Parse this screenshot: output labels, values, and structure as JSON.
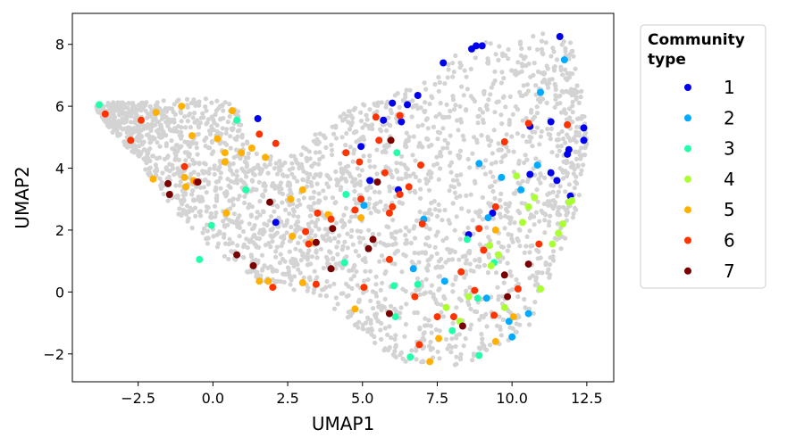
{
  "chart_data": {
    "type": "scatter",
    "xlabel": "UMAP1",
    "ylabel": "UMAP2",
    "xlim": [
      -4.7,
      13.4
    ],
    "ylim": [
      -2.9,
      9.0
    ],
    "xticks": [
      -2.5,
      0.0,
      2.5,
      5.0,
      7.5,
      10.0,
      12.5
    ],
    "xtick_labels": [
      "−2.5",
      "0.0",
      "2.5",
      "5.0",
      "7.5",
      "10.0",
      "12.5"
    ],
    "yticks": [
      -2,
      0,
      2,
      4,
      6,
      8
    ],
    "ytick_labels": [
      "−2",
      "0",
      "2",
      "4",
      "6",
      "8"
    ],
    "grid": false,
    "legend": {
      "title_lines": [
        "Community",
        "type"
      ],
      "placement": "outside-top-right"
    },
    "background_points_color": "#d3d3d3",
    "series": [
      {
        "name": "1",
        "color": "#0000ee",
        "points": [
          [
            8.8,
            7.95
          ],
          [
            9.0,
            7.95
          ],
          [
            8.65,
            7.85
          ],
          [
            7.7,
            7.4
          ],
          [
            11.6,
            8.25
          ],
          [
            6.0,
            6.1
          ],
          [
            6.5,
            6.05
          ],
          [
            6.85,
            6.35
          ],
          [
            5.7,
            5.55
          ],
          [
            6.3,
            5.5
          ],
          [
            10.6,
            5.35
          ],
          [
            11.3,
            5.5
          ],
          [
            12.4,
            5.3
          ],
          [
            12.4,
            4.9
          ],
          [
            11.9,
            4.6
          ],
          [
            11.85,
            4.45
          ],
          [
            1.5,
            5.6
          ],
          [
            4.95,
            4.7
          ],
          [
            10.6,
            3.8
          ],
          [
            11.3,
            3.85
          ],
          [
            11.5,
            3.6
          ],
          [
            11.95,
            3.1
          ],
          [
            5.25,
            3.6
          ],
          [
            6.2,
            3.3
          ],
          [
            2.1,
            2.25
          ],
          [
            9.35,
            2.55
          ],
          [
            8.55,
            1.85
          ]
        ]
      },
      {
        "name": "2",
        "color": "#00aaff",
        "points": [
          [
            11.75,
            7.5
          ],
          [
            10.95,
            6.45
          ],
          [
            10.85,
            4.1
          ],
          [
            8.9,
            4.15
          ],
          [
            9.65,
            3.7
          ],
          [
            10.3,
            3.3
          ],
          [
            9.2,
            2.4
          ],
          [
            5.05,
            2.8
          ],
          [
            7.05,
            2.35
          ],
          [
            6.7,
            0.75
          ],
          [
            7.75,
            0.35
          ],
          [
            9.15,
            -0.2
          ],
          [
            10.55,
            -0.7
          ],
          [
            9.9,
            -0.95
          ],
          [
            10.0,
            -1.45
          ]
        ]
      },
      {
        "name": "3",
        "color": "#22ffaa",
        "points": [
          [
            -3.8,
            6.05
          ],
          [
            0.8,
            5.55
          ],
          [
            1.1,
            3.3
          ],
          [
            6.15,
            4.5
          ],
          [
            4.45,
            3.15
          ],
          [
            -0.05,
            2.15
          ],
          [
            -0.45,
            1.05
          ],
          [
            4.4,
            0.95
          ],
          [
            8.5,
            1.7
          ],
          [
            9.4,
            0.95
          ],
          [
            6.05,
            0.2
          ],
          [
            6.85,
            0.25
          ],
          [
            8.85,
            -0.2
          ],
          [
            6.1,
            -0.8
          ],
          [
            8.0,
            -1.25
          ],
          [
            6.6,
            -2.1
          ],
          [
            8.9,
            -2.05
          ]
        ]
      },
      {
        "name": "4",
        "color": "#aaff33",
        "points": [
          [
            10.15,
            3.75
          ],
          [
            10.75,
            3.05
          ],
          [
            10.55,
            2.75
          ],
          [
            10.35,
            2.25
          ],
          [
            11.9,
            2.9
          ],
          [
            12.0,
            2.95
          ],
          [
            11.55,
            1.9
          ],
          [
            11.7,
            2.2
          ],
          [
            9.25,
            1.5
          ],
          [
            9.55,
            1.2
          ],
          [
            9.3,
            0.85
          ],
          [
            11.35,
            1.55
          ],
          [
            10.95,
            0.1
          ],
          [
            8.55,
            -0.15
          ],
          [
            7.8,
            -0.5
          ],
          [
            9.75,
            -0.5
          ],
          [
            8.25,
            -0.95
          ]
        ]
      },
      {
        "name": "5",
        "color": "#ffb000",
        "points": [
          [
            -1.9,
            5.8
          ],
          [
            -1.05,
            6.0
          ],
          [
            0.65,
            5.85
          ],
          [
            -0.7,
            5.05
          ],
          [
            0.15,
            4.95
          ],
          [
            1.3,
            4.65
          ],
          [
            0.95,
            4.5
          ],
          [
            1.75,
            4.35
          ],
          [
            0.4,
            4.5
          ],
          [
            0.4,
            4.2
          ],
          [
            -2.0,
            3.65
          ],
          [
            -0.95,
            3.7
          ],
          [
            -0.9,
            3.4
          ],
          [
            -0.65,
            3.6
          ],
          [
            3.0,
            3.3
          ],
          [
            2.6,
            3.0
          ],
          [
            3.85,
            2.5
          ],
          [
            4.95,
            2.4
          ],
          [
            0.45,
            2.55
          ],
          [
            2.65,
            1.8
          ],
          [
            3.3,
            1.6
          ],
          [
            1.55,
            0.35
          ],
          [
            1.85,
            0.35
          ],
          [
            3.0,
            0.3
          ],
          [
            4.75,
            -0.55
          ],
          [
            9.45,
            2.0
          ],
          [
            10.05,
            -0.8
          ],
          [
            7.55,
            -1.5
          ],
          [
            9.45,
            -1.6
          ],
          [
            7.25,
            -2.25
          ]
        ]
      },
      {
        "name": "6",
        "color": "#ff3300",
        "points": [
          [
            -3.6,
            5.75
          ],
          [
            -2.4,
            5.55
          ],
          [
            -2.75,
            4.9
          ],
          [
            1.55,
            5.1
          ],
          [
            2.1,
            4.8
          ],
          [
            -0.95,
            4.05
          ],
          [
            -0.55,
            3.55
          ],
          [
            5.45,
            5.65
          ],
          [
            6.25,
            5.7
          ],
          [
            4.45,
            4.5
          ],
          [
            4.9,
            4.2
          ],
          [
            5.55,
            4.9
          ],
          [
            6.95,
            4.1
          ],
          [
            5.75,
            3.85
          ],
          [
            6.55,
            3.4
          ],
          [
            6.25,
            3.15
          ],
          [
            4.95,
            3.0
          ],
          [
            4.75,
            2.65
          ],
          [
            6.0,
            2.75
          ],
          [
            5.9,
            2.55
          ],
          [
            3.5,
            2.55
          ],
          [
            3.95,
            2.35
          ],
          [
            7.0,
            2.2
          ],
          [
            3.1,
            1.95
          ],
          [
            3.2,
            1.55
          ],
          [
            9.45,
            2.75
          ],
          [
            8.9,
            2.05
          ],
          [
            10.55,
            5.45
          ],
          [
            11.85,
            5.4
          ],
          [
            9.75,
            4.85
          ],
          [
            10.9,
            1.55
          ],
          [
            9.05,
            1.35
          ],
          [
            5.9,
            1.05
          ],
          [
            8.3,
            0.65
          ],
          [
            10.2,
            0.1
          ],
          [
            2.0,
            0.15
          ],
          [
            3.45,
            0.25
          ],
          [
            5.05,
            0.15
          ],
          [
            6.75,
            -0.15
          ],
          [
            8.75,
            0.05
          ],
          [
            7.5,
            -0.8
          ],
          [
            8.05,
            -0.8
          ],
          [
            9.4,
            -0.75
          ],
          [
            6.9,
            -1.7
          ]
        ]
      },
      {
        "name": "7",
        "color": "#7a0000",
        "points": [
          [
            -1.5,
            3.5
          ],
          [
            -1.45,
            3.15
          ],
          [
            -0.5,
            3.55
          ],
          [
            1.9,
            2.9
          ],
          [
            0.8,
            1.2
          ],
          [
            1.35,
            0.85
          ],
          [
            5.5,
            3.55
          ],
          [
            5.95,
            4.9
          ],
          [
            4.0,
            2.05
          ],
          [
            5.35,
            1.7
          ],
          [
            5.2,
            1.4
          ],
          [
            3.45,
            1.6
          ],
          [
            3.95,
            0.75
          ],
          [
            10.55,
            0.9
          ],
          [
            9.75,
            0.55
          ],
          [
            9.85,
            -0.15
          ],
          [
            5.9,
            -0.7
          ],
          [
            8.35,
            -1.1
          ]
        ]
      }
    ]
  }
}
